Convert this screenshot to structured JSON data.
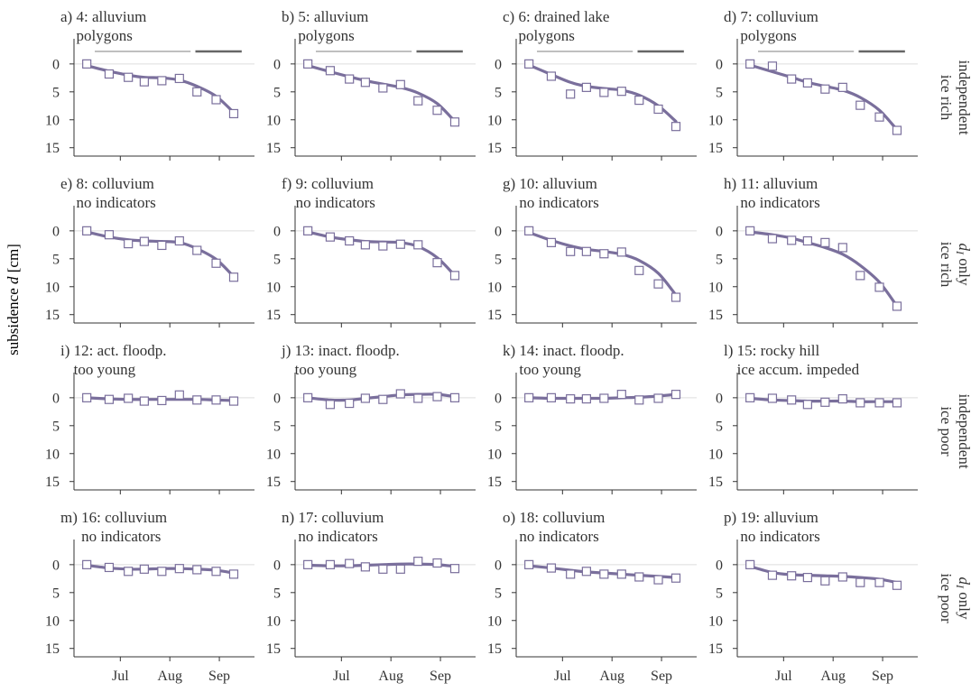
{
  "figure": {
    "ylabel_text": "subsidence ",
    "ylabel_symbol": "d",
    "ylabel_unit": " [cm]",
    "colors": {
      "line": "#7a6f9c",
      "marker_edge": "#7a6f9c",
      "axis": "#333333",
      "text": "#333333",
      "zero_line": "#dddddd",
      "period_light": "#aaaaaa",
      "period_dark": "#666666"
    }
  },
  "row_labels": [
    {
      "line1": "ice rich",
      "line2_text": "independent",
      "line2_symbol": "",
      "line2_rest": ""
    },
    {
      "line1": "ice rich",
      "line2_text": "",
      "line2_symbol": "d",
      "line2_rest": " only"
    },
    {
      "line1": "ice poor",
      "line2_text": "independent",
      "line2_symbol": "",
      "line2_rest": ""
    },
    {
      "line1": "ice poor",
      "line2_text": "",
      "line2_symbol": "d",
      "line2_rest": " only"
    }
  ],
  "x_ticks": [
    {
      "label": "Jul",
      "day": 182
    },
    {
      "label": "Aug",
      "day": 213
    },
    {
      "label": "Sep",
      "day": 244
    }
  ],
  "x_range": [
    153,
    266
  ],
  "y_ticks": [
    0,
    5,
    10,
    15
  ],
  "y_range": [
    -4.5,
    16.5
  ],
  "period_bars": {
    "light": [
      166,
      226
    ],
    "dark": [
      229,
      258
    ]
  },
  "obs_days": [
    161,
    175,
    187,
    197,
    208,
    219,
    230,
    242,
    253
  ],
  "chart_data": [
    {
      "type": "scatter",
      "panel": "a)",
      "title_line1": "4: alluvium",
      "title_line2": "polygons",
      "period_bars": true,
      "values": [
        0.0,
        1.8,
        2.4,
        3.2,
        3.0,
        2.6,
        5.0,
        6.4,
        8.9
      ],
      "fit": [
        0.3,
        1.3,
        2.0,
        2.4,
        2.5,
        2.9,
        4.0,
        5.8,
        8.7
      ]
    },
    {
      "type": "scatter",
      "panel": "b)",
      "title_line1": "5: alluvium",
      "title_line2": "polygons",
      "period_bars": true,
      "values": [
        0.0,
        1.2,
        2.7,
        3.3,
        4.3,
        3.7,
        6.6,
        8.3,
        10.4
      ],
      "fit": [
        0.3,
        1.4,
        2.3,
        3.0,
        3.6,
        4.2,
        5.2,
        7.1,
        10.3
      ]
    },
    {
      "type": "scatter",
      "panel": "c)",
      "title_line1": "6: drained lake",
      "title_line2": "polygons",
      "period_bars": true,
      "values": [
        0.0,
        2.2,
        5.4,
        4.2,
        5.1,
        4.9,
        6.5,
        8.1,
        11.2
      ],
      "fit": [
        0.2,
        1.9,
        3.3,
        4.0,
        4.4,
        4.7,
        5.6,
        7.5,
        10.3
      ]
    },
    {
      "type": "scatter",
      "panel": "d)",
      "title_line1": "7: colluvium",
      "title_line2": "polygons",
      "period_bars": true,
      "values": [
        0.0,
        0.4,
        2.7,
        3.4,
        4.5,
        4.2,
        7.4,
        9.5,
        11.9
      ],
      "fit": [
        0.2,
        1.4,
        2.4,
        3.3,
        4.0,
        4.7,
        6.0,
        8.3,
        11.8
      ]
    },
    {
      "type": "scatter",
      "panel": "e)",
      "title_line1": "8: colluvium",
      "title_line2": "no indicators",
      "period_bars": false,
      "values": [
        0.0,
        0.7,
        2.3,
        1.9,
        2.6,
        1.8,
        3.5,
        5.8,
        8.3
      ],
      "fit": [
        0.2,
        1.1,
        1.6,
        1.8,
        1.9,
        2.1,
        3.2,
        5.1,
        8.2
      ]
    },
    {
      "type": "scatter",
      "panel": "f)",
      "title_line1": "9: colluvium",
      "title_line2": "no indicators",
      "period_bars": false,
      "values": [
        0.0,
        1.1,
        1.8,
        2.5,
        2.7,
        2.4,
        2.5,
        5.7,
        8.0
      ],
      "fit": [
        0.2,
        1.1,
        1.6,
        1.9,
        2.0,
        2.1,
        2.8,
        4.8,
        8.0
      ]
    },
    {
      "type": "scatter",
      "panel": "g)",
      "title_line1": "10: alluvium",
      "title_line2": "no indicators",
      "period_bars": false,
      "values": [
        0.0,
        2.1,
        3.7,
        3.7,
        4.1,
        3.8,
        7.1,
        9.5,
        11.9
      ],
      "fit": [
        0.3,
        1.7,
        2.7,
        3.3,
        3.7,
        4.2,
        5.3,
        7.6,
        11.5
      ]
    },
    {
      "type": "scatter",
      "panel": "h)",
      "title_line1": "11: alluvium",
      "title_line2": "no indicators",
      "period_bars": false,
      "values": [
        0.0,
        1.4,
        1.7,
        1.8,
        2.1,
        3.0,
        8.0,
        10.1,
        13.5
      ],
      "fit": [
        0.2,
        0.7,
        1.3,
        2.1,
        3.0,
        4.2,
        6.2,
        9.2,
        13.5
      ]
    },
    {
      "type": "scatter",
      "panel": "i)",
      "title_line1": "12: act. floodp.",
      "title_line2": "too young",
      "period_bars": false,
      "values": [
        0.0,
        0.3,
        0.1,
        0.6,
        0.5,
        -0.5,
        0.4,
        0.4,
        0.6
      ],
      "fit": [
        0.0,
        0.2,
        0.3,
        0.3,
        0.3,
        0.3,
        0.3,
        0.4,
        0.5
      ]
    },
    {
      "type": "scatter",
      "panel": "j)",
      "title_line1": "13: inact. floodp.",
      "title_line2": "too young",
      "period_bars": false,
      "values": [
        0.0,
        1.2,
        1.0,
        0.1,
        0.3,
        -0.7,
        0.1,
        -0.2,
        0.0
      ],
      "fit": [
        0.0,
        0.4,
        0.4,
        0.1,
        -0.2,
        -0.5,
        -0.6,
        -0.6,
        -0.2
      ]
    },
    {
      "type": "scatter",
      "panel": "k)",
      "title_line1": "14: inact. floodp.",
      "title_line2": "too young",
      "period_bars": false,
      "values": [
        0.0,
        0.0,
        0.2,
        0.2,
        0.1,
        -0.6,
        0.4,
        0.1,
        -0.6
      ],
      "fit": [
        0.0,
        0.1,
        0.1,
        0.1,
        0.1,
        0.0,
        -0.1,
        -0.3,
        -0.6
      ]
    },
    {
      "type": "scatter",
      "panel": "l)",
      "title_line1": "15: rocky hill",
      "title_line2": "ice accum. impeded",
      "period_bars": false,
      "values": [
        0.0,
        0.1,
        0.4,
        1.2,
        0.8,
        0.2,
        0.9,
        0.9,
        0.9
      ],
      "fit": [
        0.1,
        0.4,
        0.5,
        0.6,
        0.6,
        0.6,
        0.7,
        0.7,
        0.7
      ]
    },
    {
      "type": "scatter",
      "panel": "m)",
      "title_line1": "16: colluvium",
      "title_line2": "no indicators",
      "period_bars": false,
      "values": [
        0.0,
        0.5,
        1.2,
        0.8,
        1.2,
        0.7,
        0.9,
        1.2,
        1.7
      ],
      "fit": [
        0.1,
        0.6,
        0.8,
        0.8,
        0.7,
        0.7,
        0.8,
        1.0,
        1.5
      ]
    },
    {
      "type": "scatter",
      "panel": "n)",
      "title_line1": "17: colluvium",
      "title_line2": "no indicators",
      "period_bars": false,
      "values": [
        0.0,
        0.0,
        -0.2,
        0.4,
        0.8,
        0.8,
        -0.6,
        -0.3,
        0.7
      ],
      "fit": [
        0.1,
        0.2,
        0.2,
        0.1,
        0.0,
        -0.1,
        -0.1,
        0.0,
        0.3
      ]
    },
    {
      "type": "scatter",
      "panel": "o)",
      "title_line1": "18: colluvium",
      "title_line2": "no indicators",
      "period_bars": false,
      "values": [
        0.0,
        0.6,
        1.7,
        1.2,
        1.7,
        1.7,
        2.2,
        2.7,
        2.4
      ],
      "fit": [
        0.2,
        0.6,
        1.0,
        1.3,
        1.5,
        1.7,
        1.9,
        2.1,
        2.3
      ]
    },
    {
      "type": "scatter",
      "panel": "p)",
      "title_line1": "19: alluvium",
      "title_line2": "no indicators",
      "period_bars": false,
      "values": [
        0.0,
        1.9,
        2.0,
        2.3,
        2.9,
        2.2,
        3.2,
        3.2,
        3.7
      ],
      "fit": [
        0.3,
        1.4,
        1.8,
        1.9,
        2.0,
        2.1,
        2.3,
        2.6,
        3.2
      ]
    }
  ]
}
